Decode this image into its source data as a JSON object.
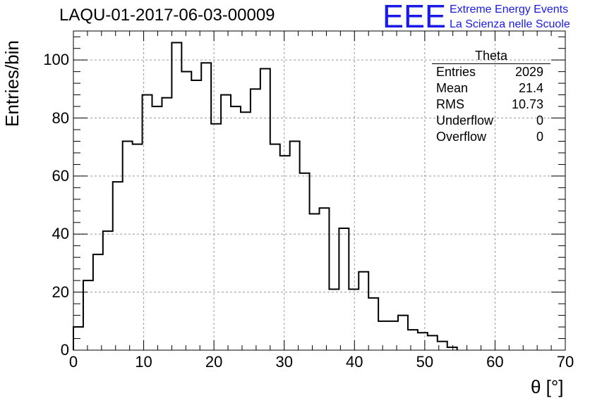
{
  "chart_data": {
    "type": "histogram",
    "title": "LAQU-01-2017-06-03-00009",
    "xlabel": "θ [°]",
    "ylabel": "Entries/bin",
    "xlim": [
      0,
      70
    ],
    "ylim": [
      0,
      110
    ],
    "grid": true,
    "bin_width": 1.4,
    "bin_start": 0,
    "values": [
      8,
      24,
      33,
      41,
      58,
      72,
      71,
      88,
      84,
      87,
      106,
      96,
      93,
      99,
      78,
      88,
      84,
      82,
      90,
      97,
      71,
      67,
      72,
      61,
      47,
      49,
      21,
      42,
      21,
      27,
      18,
      10,
      10,
      12,
      7,
      6,
      5,
      3,
      1
    ],
    "x_ticks": [
      "0",
      "10",
      "20",
      "30",
      "40",
      "50",
      "60",
      "70"
    ],
    "y_ticks": [
      "0",
      "20",
      "40",
      "60",
      "80",
      "100"
    ],
    "stats_box": {
      "name": "Theta",
      "rows": [
        {
          "label": "Entries",
          "value": "2029"
        },
        {
          "label": "Mean",
          "value": "21.4"
        },
        {
          "label": "RMS",
          "value": "10.73"
        },
        {
          "label": "Underflow",
          "value": "0"
        },
        {
          "label": "Overflow",
          "value": "0"
        }
      ]
    }
  },
  "logo": {
    "text": "EEE",
    "line1": "Extreme Energy Events",
    "line2": "La Scienza nelle Scuole",
    "color": "#1a1ae6"
  }
}
